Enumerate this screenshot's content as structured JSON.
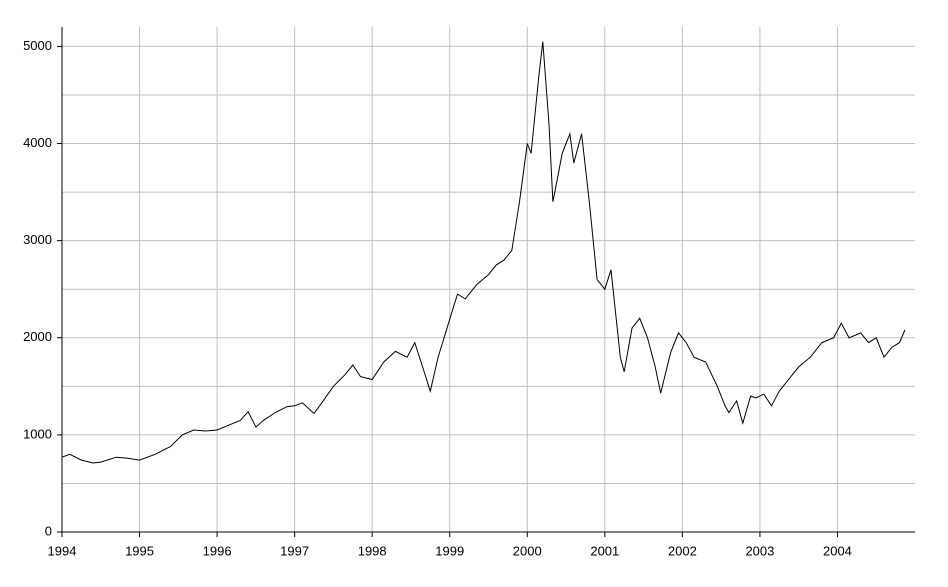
{
  "chart_data": {
    "type": "line",
    "x": [
      1994.0,
      1994.1,
      1994.25,
      1994.4,
      1994.5,
      1994.7,
      1994.85,
      1995.0,
      1995.2,
      1995.4,
      1995.55,
      1995.7,
      1995.85,
      1996.0,
      1996.15,
      1996.3,
      1996.4,
      1996.5,
      1996.6,
      1996.75,
      1996.9,
      1997.0,
      1997.1,
      1997.25,
      1997.35,
      1997.5,
      1997.65,
      1997.75,
      1997.85,
      1998.0,
      1998.15,
      1998.3,
      1998.45,
      1998.55,
      1998.65,
      1998.75,
      1998.85,
      1999.0,
      1999.1,
      1999.2,
      1999.35,
      1999.5,
      1999.6,
      1999.7,
      1999.8,
      1999.9,
      2000.0,
      2000.05,
      2000.15,
      2000.2,
      2000.28,
      2000.33,
      2000.38,
      2000.45,
      2000.55,
      2000.6,
      2000.7,
      2000.8,
      2000.9,
      2001.0,
      2001.08,
      2001.2,
      2001.25,
      2001.35,
      2001.45,
      2001.55,
      2001.65,
      2001.72,
      2001.85,
      2001.95,
      2002.05,
      2002.15,
      2002.3,
      2002.45,
      2002.55,
      2002.6,
      2002.7,
      2002.78,
      2002.88,
      2002.95,
      2003.05,
      2003.15,
      2003.25,
      2003.4,
      2003.5,
      2003.65,
      2003.8,
      2003.95,
      2004.05,
      2004.15,
      2004.3,
      2004.4,
      2004.5,
      2004.6,
      2004.7,
      2004.8,
      2004.87
    ],
    "series": [
      {
        "color": "#000000",
        "values": [
          770,
          800,
          740,
          710,
          720,
          770,
          760,
          740,
          800,
          880,
          1000,
          1050,
          1040,
          1050,
          1100,
          1150,
          1240,
          1080,
          1150,
          1230,
          1290,
          1300,
          1330,
          1220,
          1330,
          1500,
          1620,
          1720,
          1600,
          1570,
          1750,
          1860,
          1800,
          1950,
          1700,
          1450,
          1800,
          2190,
          2450,
          2400,
          2550,
          2650,
          2750,
          2800,
          2900,
          3400,
          4000,
          3900,
          4700,
          5050,
          4200,
          3400,
          3600,
          3900,
          4100,
          3800,
          4100,
          3400,
          2600,
          2500,
          2700,
          1800,
          1650,
          2100,
          2200,
          2000,
          1700,
          1430,
          1850,
          2050,
          1950,
          1800,
          1750,
          1500,
          1300,
          1230,
          1350,
          1120,
          1400,
          1380,
          1420,
          1300,
          1450,
          1600,
          1700,
          1800,
          1950,
          2000,
          2150,
          2000,
          2050,
          1950,
          2000,
          1800,
          1900,
          1950,
          2080
        ]
      }
    ],
    "xlim": [
      1994,
      2005
    ],
    "xticks": [
      1994,
      1995,
      1996,
      1997,
      1998,
      1999,
      2000,
      2001,
      2002,
      2003,
      2004
    ],
    "ylim": [
      0,
      5200
    ],
    "yticks": [
      0,
      1000,
      2000,
      3000,
      4000,
      5000
    ],
    "yminorticks": [
      500,
      1500,
      2500,
      3500,
      4500
    ],
    "grid": true
  }
}
